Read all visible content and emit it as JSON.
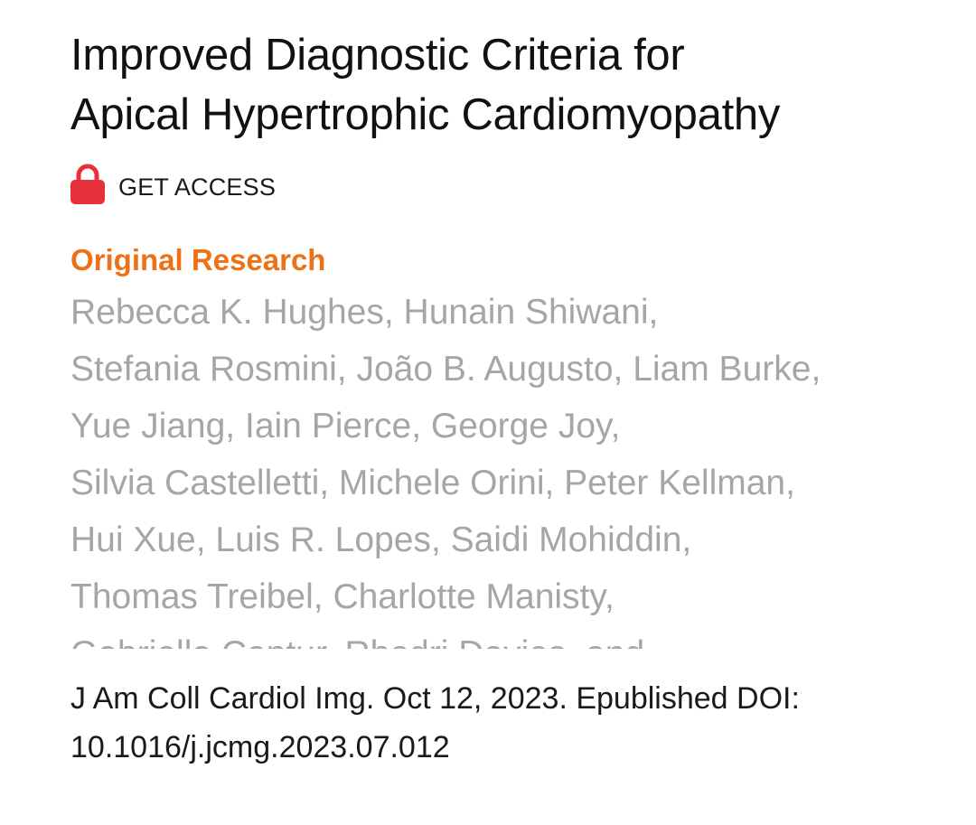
{
  "article": {
    "title_lines": [
      "Improved Diagnostic Criteria for",
      "Apical Hypertrophic Cardiomyopathy"
    ],
    "access": {
      "icon": "lock-icon",
      "label": "GET ACCESS",
      "icon_color": "#e8303a"
    },
    "category": "Original Research",
    "category_color": "#ef7117",
    "authors_lines": [
      "Rebecca K. Hughes, Hunain Shiwani,",
      "Stefania Rosmini, João B. Augusto, Liam Burke,",
      "Yue Jiang, Iain Pierce, George Joy,",
      "Silvia Castelletti, Michele Orini, Peter Kellman,",
      "Hui Xue, Luis R. Lopes, Saidi Mohiddin,",
      "Thomas Treibel, Charlotte Manisty,",
      "Gabriella Captur, Rhodri Davies, and"
    ],
    "citation_lines": [
      "J Am Coll Cardiol Img. Oct 12, 2023. Epublished DOI:",
      "10.1016/j.jcmg.2023.07.012"
    ]
  }
}
